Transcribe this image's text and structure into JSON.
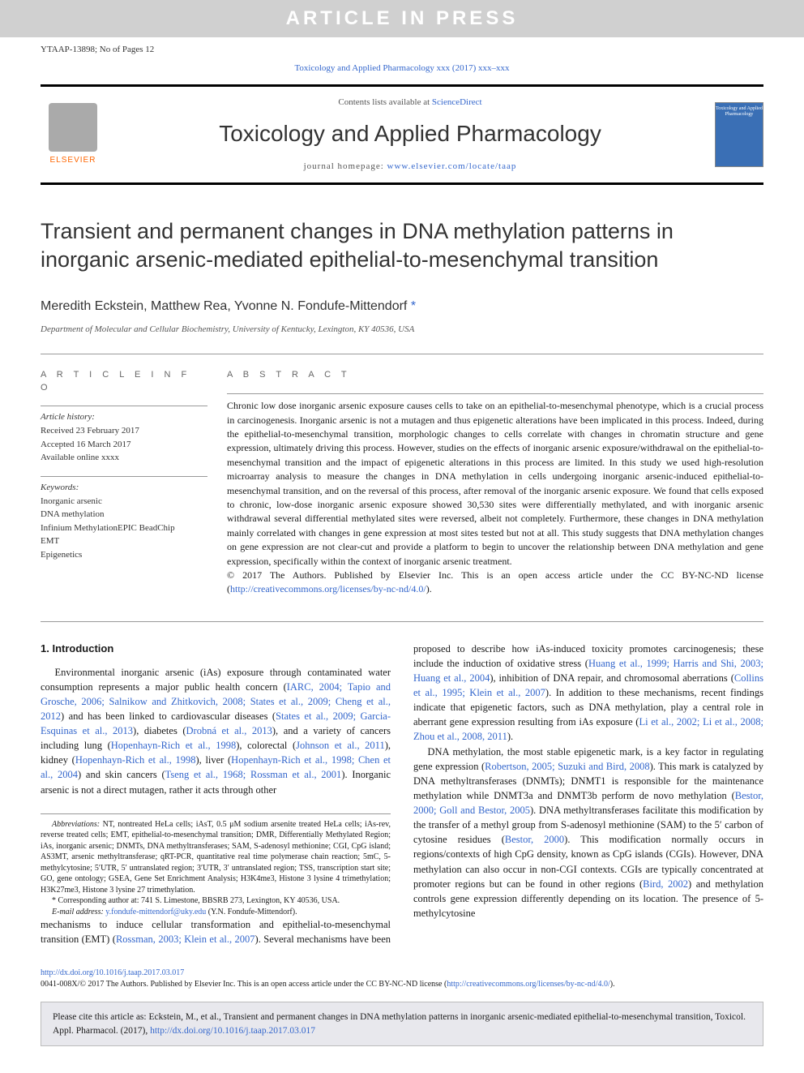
{
  "banner": "ARTICLE IN PRESS",
  "articleId": "YTAAP-13898; No of Pages 12",
  "journalLinkLine": "Toxicology and Applied Pharmacology xxx (2017) xxx–xxx",
  "header": {
    "publisherName": "ELSEVIER",
    "contentsPrefix": "Contents lists available at ",
    "contentsLink": "ScienceDirect",
    "journalName": "Toxicology and Applied Pharmacology",
    "homepagePrefix": "journal homepage: ",
    "homepageLink": "www.elsevier.com/locate/taap",
    "coverLabel": "Toxicology and Applied Pharmacology"
  },
  "title": "Transient and permanent changes in DNA methylation patterns in inorganic arsenic-mediated epithelial-to-mesenchymal transition",
  "authors": "Meredith Eckstein, Matthew Rea, Yvonne N. Fondufe-Mittendorf ",
  "corrMark": "*",
  "affiliation": "Department of Molecular and Cellular Biochemistry, University of Kentucky, Lexington, KY 40536, USA",
  "info": {
    "heading": "a r t i c l e   i n f o",
    "historyLabel": "Article history:",
    "history": [
      "Received 23 February 2017",
      "Accepted 16 March 2017",
      "Available online xxxx"
    ],
    "keywordLabel": "Keywords:",
    "keywords": [
      "Inorganic arsenic",
      "DNA methylation",
      "Infinium MethylationEPIC BeadChip",
      "EMT",
      "Epigenetics"
    ]
  },
  "abstract": {
    "heading": "a b s t r a c t",
    "body": "Chronic low dose inorganic arsenic exposure causes cells to take on an epithelial-to-mesenchymal phenotype, which is a crucial process in carcinogenesis. Inorganic arsenic is not a mutagen and thus epigenetic alterations have been implicated in this process. Indeed, during the epithelial-to-mesenchymal transition, morphologic changes to cells correlate with changes in chromatin structure and gene expression, ultimately driving this process. However, studies on the effects of inorganic arsenic exposure/withdrawal on the epithelial-to-mesenchymal transition and the impact of epigenetic alterations in this process are limited. In this study we used high-resolution microarray analysis to measure the changes in DNA methylation in cells undergoing inorganic arsenic-induced epithelial-to-mesenchymal transition, and on the reversal of this process, after removal of the inorganic arsenic exposure. We found that cells exposed to chronic, low-dose inorganic arsenic exposure showed 30,530 sites were differentially methylated, and with inorganic arsenic withdrawal several differential methylated sites were reversed, albeit not completely. Furthermore, these changes in DNA methylation mainly correlated with changes in gene expression at most sites tested but not at all. This study suggests that DNA methylation changes on gene expression are not clear-cut and provide a platform to begin to uncover the relationship between DNA methylation and gene expression, specifically within the context of inorganic arsenic treatment.",
    "copyright": "© 2017 The Authors. Published by Elsevier Inc. This is an open access article under the CC BY-NC-ND license (",
    "licenseUrl": "http://creativecommons.org/licenses/by-nc-nd/4.0/",
    "closing": ")."
  },
  "section1": {
    "heading": "1. Introduction",
    "p1a": "Environmental inorganic arsenic (iAs) exposure through contaminated water consumption represents a major public health concern (",
    "p1ref1": "IARC, 2004; Tapio and Grosche, 2006; Salnikow and Zhitkovich, 2008; States et al., 2009; Cheng et al., 2012",
    "p1b": ") and has been linked to cardiovascular diseases (",
    "p1ref2": "States et al., 2009; Garcia-Esquinas et al., 2013",
    "p1c": "), diabetes (",
    "p1ref3": "Drobná et al., 2013",
    "p1d": "), and a variety of cancers including lung (",
    "p1ref4": "Hopenhayn-Rich et al., 1998",
    "p1e": "), colorectal (",
    "p1ref5": "Johnson et al., 2011",
    "p1f": "), kidney (",
    "p1ref6": "Hopenhayn-Rich et al., 1998",
    "p1g": "), liver (",
    "p1ref7": "Hopenhayn-Rich et al., 1998; Chen et al., 2004",
    "p1h": ") and skin cancers (",
    "p1ref8": "Tseng et al., 1968; Rossman et al., 2001",
    "p1i": "). Inorganic arsenic is not a direct mutagen, rather it acts through other",
    "p2a": "mechanisms to induce cellular transformation and epithelial-to-mesenchymal transition (EMT) (",
    "p2ref1": "Rossman, 2003; Klein et al., 2007",
    "p2b": "). Several mechanisms have been proposed to describe how iAs-induced toxicity promotes carcinogenesis; these include the induction of oxidative stress (",
    "p2ref2": "Huang et al., 1999; Harris and Shi, 2003; Huang et al., 2004",
    "p2c": "), inhibition of DNA repair, and chromosomal aberrations (",
    "p2ref3": "Collins et al., 1995; Klein et al., 2007",
    "p2d": "). In addition to these mechanisms, recent findings indicate that epigenetic factors, such as DNA methylation, play a central role in aberrant gene expression resulting from iAs exposure (",
    "p2ref4": "Li et al., 2002; Li et al., 2008; Zhou et al., 2008, 2011",
    "p2e": ").",
    "p3a": "DNA methylation, the most stable epigenetic mark, is a key factor in regulating gene expression (",
    "p3ref1": "Robertson, 2005; Suzuki and Bird, 2008",
    "p3b": "). This mark is catalyzed by DNA methyltransferases (DNMTs); DNMT1 is responsible for the maintenance methylation while DNMT3a and DNMT3b perform de novo methylation (",
    "p3ref2": "Bestor, 2000; Goll and Bestor, 2005",
    "p3c": "). DNA methyltransferases facilitate this modification by the transfer of a methyl group from S-adenosyl methionine (SAM) to the 5′ carbon of cytosine residues (",
    "p3ref3": "Bestor, 2000",
    "p3d": "). This modification normally occurs in regions/contexts of high CpG density, known as CpG islands (CGIs). However, DNA methylation can also occur in non-CGI contexts. CGIs are typically concentrated at promoter regions but can be found in other regions (",
    "p3ref4": "Bird, 2002",
    "p3e": ") and methylation controls gene expression differently depending on its location. The presence of 5-methylcytosine"
  },
  "footnotes": {
    "abbrevLabel": "Abbreviations:",
    "abbrevBody": " NT, nontreated HeLa cells; iAsT, 0.5 μM sodium arsenite treated HeLa cells; iAs-rev, reverse treated cells; EMT, epithelial-to-mesenchymal transition; DMR, Differentially Methylated Region; iAs, inorganic arsenic; DNMTs, DNA methyltransferases; SAM, S-adenosyl methionine; CGI, CpG island; AS3MT, arsenic methyltransferase; qRT-PCR, quantitative real time polymerase chain reaction; 5mC, 5-methylcytosine; 5′UTR, 5′ untranslated region; 3′UTR, 3′ untranslated region; TSS, transcription start site; GO, gene ontology; GSEA, Gene Set Enrichment Analysis; H3K4me3, Histone 3 lysine 4 trimethylation; H3K27me3, Histone 3 lysine 27 trimethylation.",
    "corrLabel": "* Corresponding author at: 741 S. Limestone, BBSRB 273, Lexington, KY 40536, USA.",
    "emailLabel": "E-mail address: ",
    "email": "y.fondufe-mittendorf@uky.edu",
    "emailSuffix": " (Y.N. Fondufe-Mittendorf)."
  },
  "footer": {
    "doi": "http://dx.doi.org/10.1016/j.taap.2017.03.017",
    "copyLine": "0041-008X/© 2017 The Authors. Published by Elsevier Inc. This is an open access article under the CC BY-NC-ND license (",
    "licenseUrl": "http://creativecommons.org/licenses/by-nc-nd/4.0/",
    "closing": ")."
  },
  "citeBox": {
    "text": "Please cite this article as: Eckstein, M., et al., Transient and permanent changes in DNA methylation patterns in inorganic arsenic-mediated epithelial-to-mesenchymal transition, Toxicol. Appl. Pharmacol. (2017), ",
    "doi": "http://dx.doi.org/10.1016/j.taap.2017.03.017"
  },
  "colors": {
    "link": "#3366cc",
    "bannerBg": "#d0d0d0",
    "bannerText": "#ffffff",
    "coverBg": "#3a6fb5",
    "citeBg": "#e8e8ed",
    "publisherOrange": "#ff6600"
  }
}
